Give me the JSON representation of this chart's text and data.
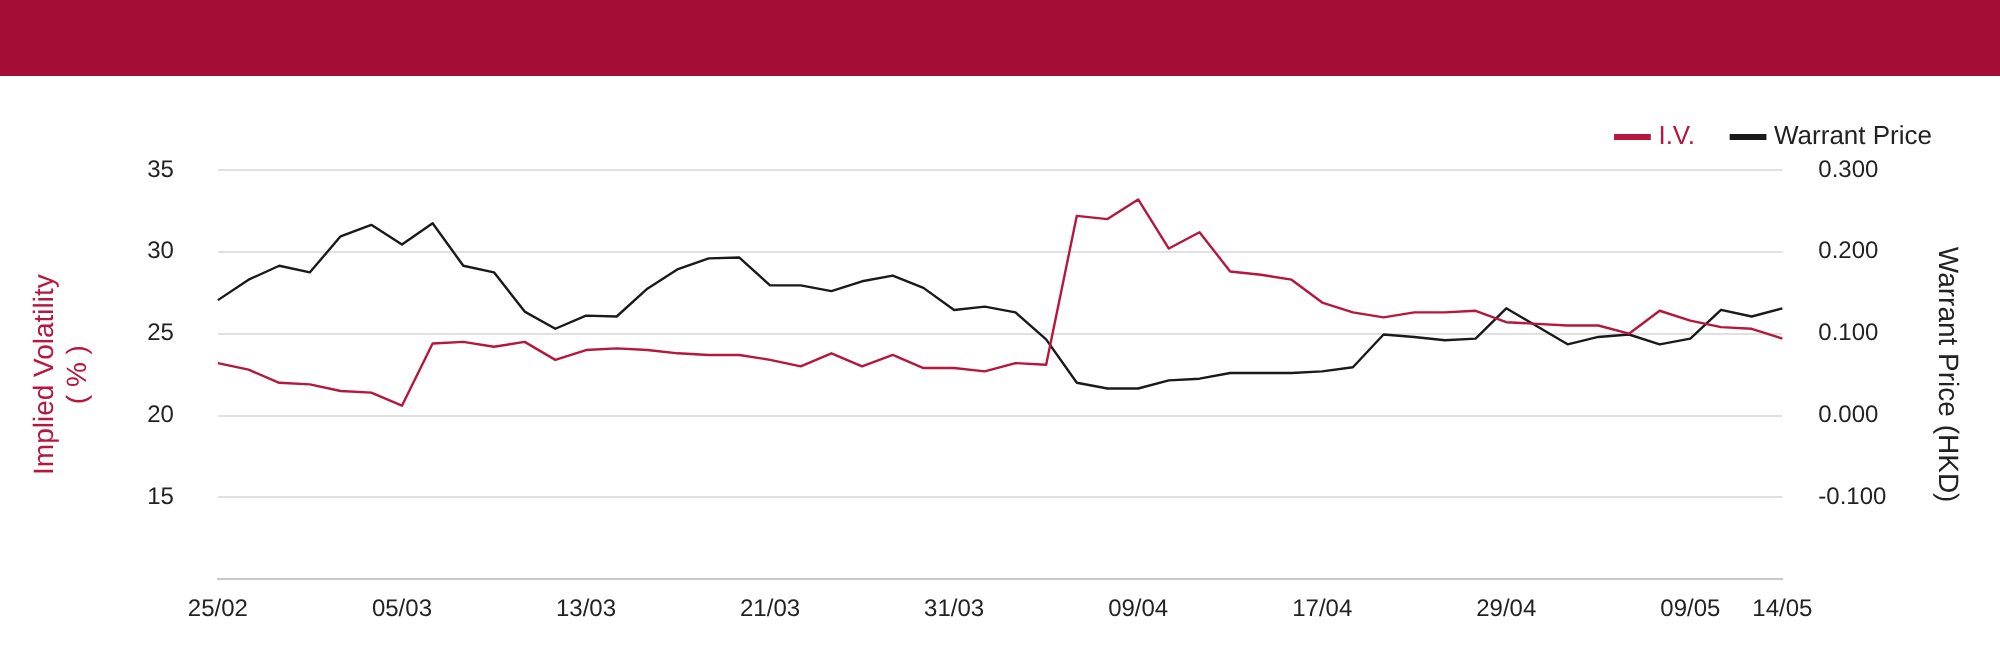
{
  "chart_data": {
    "type": "line",
    "categories": [
      "25/02",
      null,
      null,
      null,
      null,
      null,
      "05/03",
      null,
      null,
      null,
      null,
      null,
      "13/03",
      null,
      null,
      null,
      null,
      null,
      "21/03",
      null,
      null,
      null,
      null,
      null,
      "31/03",
      null,
      null,
      null,
      null,
      null,
      "09/04",
      null,
      null,
      null,
      null,
      null,
      "17/04",
      null,
      null,
      null,
      null,
      null,
      "29/04",
      null,
      null,
      null,
      null,
      null,
      "09/05",
      null,
      null,
      "14/05"
    ],
    "series": [
      {
        "name": "I.V.",
        "color": "#b5173f",
        "values": [
          23.2,
          22.8,
          22.0,
          21.9,
          21.5,
          21.4,
          20.6,
          24.4,
          24.5,
          24.2,
          24.5,
          23.4,
          24.0,
          24.1,
          24.0,
          23.8,
          23.7,
          23.7,
          23.4,
          23.0,
          23.8,
          23.0,
          23.7,
          22.9,
          22.9,
          22.7,
          23.2,
          23.1,
          32.2,
          32.0,
          33.2,
          30.2,
          31.2,
          28.8,
          28.6,
          28.3,
          26.9,
          26.3,
          26.0,
          26.3,
          26.3,
          26.4,
          25.7,
          25.6,
          25.5,
          25.5,
          25.0,
          26.4,
          25.8,
          25.4,
          25.3,
          24.7
        ]
      },
      {
        "name": "Warrant Price",
        "color": "#1a1a1a",
        "axis": "y2",
        "values": [
          0.141,
          0.166,
          0.183,
          0.175,
          0.219,
          0.233,
          0.209,
          0.235,
          0.183,
          0.175,
          0.127,
          0.106,
          0.122,
          0.121,
          0.155,
          0.179,
          0.192,
          0.193,
          0.159,
          0.159,
          0.152,
          0.164,
          0.171,
          0.156,
          0.129,
          0.133,
          0.126,
          0.093,
          0.04,
          0.033,
          0.033,
          0.043,
          0.045,
          0.052,
          0.052,
          0.052,
          0.054,
          0.059,
          0.099,
          0.096,
          0.092,
          0.094,
          0.131,
          0.109,
          0.087,
          0.096,
          0.099,
          0.087,
          0.094,
          0.129,
          0.121,
          0.131
        ]
      }
    ],
    "ylabel": "Implied Volatility\n( % )",
    "y2label": "Warrant Price (HKD)",
    "ylim": [
      10,
      35
    ],
    "yticks": [
      15,
      20,
      25,
      30,
      35
    ],
    "y2lim": [
      -0.2,
      0.3
    ],
    "y2ticks": [
      {
        "value": -0.1,
        "label": "-0.100"
      },
      {
        "value": 0,
        "label": "0.000"
      },
      {
        "value": 0.1,
        "label": "0.100"
      },
      {
        "value": 0.2,
        "label": "0.200"
      },
      {
        "value": 0.3,
        "label": "0.300"
      }
    ],
    "grid": "y",
    "legend": "top right",
    "marker": "none",
    "line_style": "solid"
  }
}
